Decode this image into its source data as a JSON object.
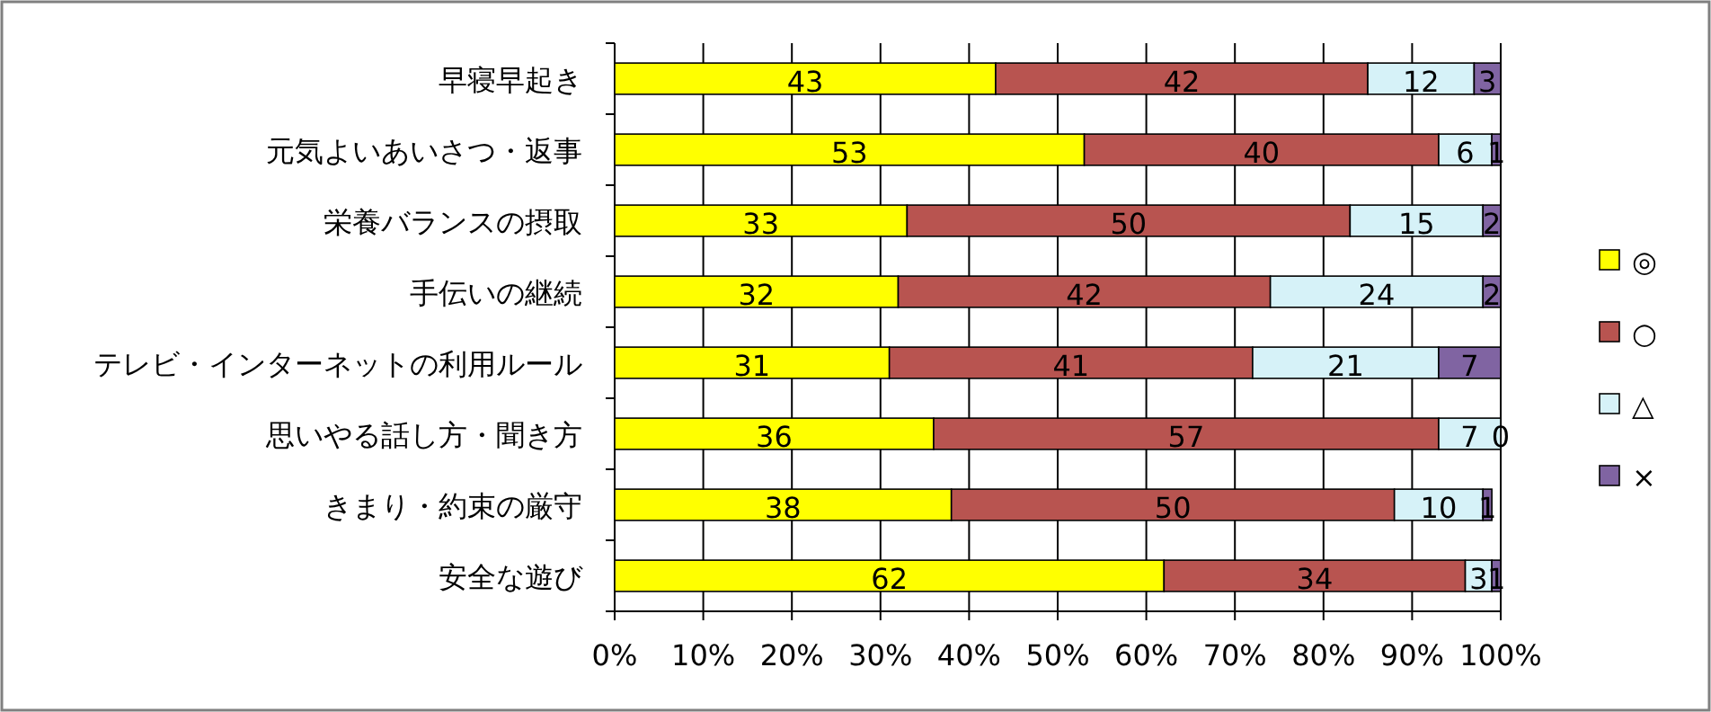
{
  "chart_data": {
    "type": "bar",
    "orientation": "horizontal",
    "stacked": true,
    "categories": [
      "早寝早起き",
      "元気よいあいさつ・返事",
      "栄養バランスの摂取",
      "手伝いの継続",
      "テレビ・インターネットの利用ルール",
      "思いやる話し方・聞き方",
      "きまり・約束の厳守",
      "安全な遊び"
    ],
    "series": [
      {
        "name": "◎",
        "color": "#ffff00",
        "values": [
          43,
          53,
          33,
          32,
          31,
          36,
          38,
          62
        ]
      },
      {
        "name": "○",
        "color": "#b85450",
        "values": [
          42,
          40,
          50,
          42,
          41,
          57,
          50,
          34
        ]
      },
      {
        "name": "△",
        "color": "#d6f2f8",
        "values": [
          12,
          6,
          15,
          24,
          21,
          7,
          10,
          3
        ]
      },
      {
        "name": "×",
        "color": "#8064a2",
        "values": [
          3,
          1,
          2,
          2,
          7,
          0,
          1,
          1
        ]
      }
    ],
    "xlim": [
      0,
      100
    ],
    "xticks": [
      {
        "value": 0,
        "label": "0%"
      },
      {
        "value": 10,
        "label": "10%"
      },
      {
        "value": 20,
        "label": "20%"
      },
      {
        "value": 30,
        "label": "30%"
      },
      {
        "value": 40,
        "label": "40%"
      },
      {
        "value": 50,
        "label": "50%"
      },
      {
        "value": 60,
        "label": "60%"
      },
      {
        "value": 70,
        "label": "70%"
      },
      {
        "value": 80,
        "label": "80%"
      },
      {
        "value": 90,
        "label": "90%"
      },
      {
        "value": 100,
        "label": "100%"
      }
    ],
    "grid": "x",
    "legend": "right",
    "data_labels": true
  }
}
